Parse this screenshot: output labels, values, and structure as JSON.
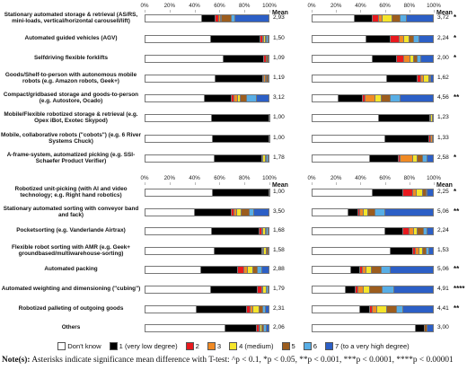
{
  "legend": [
    {
      "name": "Don't know",
      "color": "#ffffff"
    },
    {
      "name": "1 (very low degree)",
      "color": "#000000"
    },
    {
      "name": "2",
      "color": "#e8191e"
    },
    {
      "name": "3",
      "color": "#f08a24"
    },
    {
      "name": "4 (medium)",
      "color": "#f5e52b"
    },
    {
      "name": "5",
      "color": "#9c5d1e"
    },
    {
      "name": "6",
      "color": "#58aee6"
    },
    {
      "name": "7 (to a very high degree)",
      "color": "#2c5fc6"
    }
  ],
  "note_label": "Note(s):",
  "note_text": "Asterisks indicate significance mean difference with T-test: ^p < 0.1, *p < 0.05, **p < 0.001, ***p < 0.0001, ****p < 0.00001",
  "chart_data": [
    {
      "type": "bar",
      "orientation": "horizontal",
      "stacked": true,
      "categories": [
        "Stationary automated storage & retrieval (AS/RS, mini-loads, vertical/horizontal carousell/lift)",
        "Automated guided vehicles (AGV)",
        "Selfdriving flexible forklifts",
        "Goods/Shelf-to-person with autonomous mobile robots (e.g. Amazon robots, Geek+)",
        "Compact/gridbased storage and goods-to-person (e.g. Autostore, Ocado)",
        "Mobile/Flexible robotized storage & retrieval (e.g. Opex iBot, Exotec Skypod)",
        "Mobile, collaborative robots (\"cobots\") (e.g. 6 River Systems Chuck)",
        "A-frame-system, automatized picking (e.g. SSI-Schaefer Product Verifier)"
      ],
      "series": [
        {
          "values": [
            46,
            53,
            63,
            57,
            48,
            54,
            55,
            56
          ]
        },
        {
          "values": [
            11,
            40,
            33,
            38,
            22,
            46,
            45,
            38
          ]
        },
        {
          "values": [
            3,
            2,
            2,
            1,
            2,
            0,
            0,
            1
          ]
        },
        {
          "values": [
            1,
            1,
            0,
            1,
            3,
            0,
            0,
            0
          ]
        },
        {
          "values": [
            1,
            1,
            0,
            1,
            2,
            0,
            0,
            2
          ]
        },
        {
          "values": [
            8,
            1,
            1,
            1,
            5,
            0,
            0,
            1
          ]
        },
        {
          "values": [
            3,
            1,
            0,
            0,
            8,
            0,
            0,
            1
          ]
        },
        {
          "values": [
            27,
            1,
            1,
            1,
            10,
            0,
            0,
            1
          ]
        }
      ],
      "mean_label": "Mean",
      "means": [
        2.93,
        1.5,
        1.09,
        1.19,
        3.12,
        1.0,
        1.0,
        1.78
      ],
      "value_labels": [
        "2,93",
        "1,50",
        "1,09",
        "1,19",
        "3,12",
        "1,00",
        "1,00",
        "1,78"
      ],
      "xlim": [
        0,
        100
      ],
      "xticks": [
        {
          "value": 0,
          "label": "0%"
        },
        {
          "value": 20,
          "label": "20%"
        },
        {
          "value": 40,
          "label": "40%"
        },
        {
          "value": 60,
          "label": "60%"
        },
        {
          "value": 80,
          "label": "80%"
        },
        {
          "value": 100,
          "label": "100%"
        }
      ]
    },
    {
      "type": "bar",
      "orientation": "horizontal",
      "stacked": true,
      "series": [
        {
          "values": [
            35,
            45,
            50,
            62,
            22,
            55,
            60,
            48
          ]
        },
        {
          "values": [
            15,
            20,
            20,
            25,
            20,
            42,
            36,
            23
          ]
        },
        {
          "values": [
            5,
            7,
            6,
            3,
            2,
            1,
            2,
            2
          ]
        },
        {
          "values": [
            3,
            4,
            5,
            2,
            8,
            0,
            1,
            10
          ]
        },
        {
          "values": [
            8,
            4,
            3,
            4,
            5,
            1,
            0,
            4
          ]
        },
        {
          "values": [
            7,
            4,
            3,
            1,
            8,
            0,
            0,
            4
          ]
        },
        {
          "values": [
            5,
            4,
            3,
            1,
            8,
            0,
            0,
            4
          ]
        },
        {
          "values": [
            22,
            12,
            10,
            2,
            27,
            1,
            1,
            5
          ]
        }
      ],
      "mean_label": "Mean",
      "means": [
        3.72,
        2.24,
        2.0,
        1.62,
        4.56,
        1.23,
        1.33,
        2.58
      ],
      "value_labels": [
        "3,72",
        "2,24",
        "2,00",
        "1,62",
        "4,56",
        "1,23",
        "1,33",
        "2,58"
      ],
      "significance": [
        "*",
        "*",
        "*",
        null,
        "**",
        null,
        null,
        "*"
      ],
      "xlim": [
        0,
        100
      ],
      "xticks": [
        {
          "value": 0,
          "label": "0%"
        },
        {
          "value": 20,
          "label": "20%"
        },
        {
          "value": 40,
          "label": "40%"
        },
        {
          "value": 60,
          "label": "60%"
        },
        {
          "value": 80,
          "label": "80%"
        },
        {
          "value": 100,
          "label": "100%"
        }
      ]
    },
    {
      "type": "bar",
      "orientation": "horizontal",
      "stacked": true,
      "categories": [
        "Robotized unit-picking (with AI and video technology; e.g. Right hand robotics)",
        "Stationary automated sorting with conveyor band and fack)",
        "Pocketsorting (e.g. Vanderlande Airtrax)",
        "Flexible robot sorting with AMR (e.g. Geek+ groundbased/multiwarehouse-sorting)",
        "Automated packing",
        "Automated weighting and dimensioning (\"cubing\")",
        "Robotized palleting of outgoing goods",
        "Others"
      ],
      "series": [
        {
          "values": [
            55,
            40,
            54,
            56,
            45,
            53,
            42,
            65
          ]
        },
        {
          "values": [
            45,
            30,
            38,
            38,
            30,
            38,
            40,
            25
          ]
        },
        {
          "values": [
            0,
            2,
            2,
            1,
            5,
            3,
            3,
            2
          ]
        },
        {
          "values": [
            0,
            2,
            1,
            1,
            3,
            1,
            2,
            1
          ]
        },
        {
          "values": [
            0,
            4,
            2,
            2,
            4,
            3,
            5,
            1
          ]
        },
        {
          "values": [
            0,
            6,
            1,
            1,
            4,
            0,
            3,
            2
          ]
        },
        {
          "values": [
            0,
            4,
            1,
            0,
            3,
            1,
            2,
            2
          ]
        },
        {
          "values": [
            0,
            12,
            1,
            1,
            6,
            1,
            3,
            2
          ]
        }
      ],
      "mean_label": "Mean",
      "means": [
        1.0,
        3.5,
        1.68,
        1.58,
        2.88,
        1.79,
        2.31,
        2.06
      ],
      "value_labels": [
        "1,00",
        "3,50",
        "1,68",
        "1,58",
        "2,88",
        "1,79",
        "2,31",
        "2,06"
      ],
      "xlim": [
        0,
        100
      ],
      "xticks": [
        {
          "value": 0,
          "label": "0%"
        },
        {
          "value": 20,
          "label": "20%"
        },
        {
          "value": 40,
          "label": "40%"
        },
        {
          "value": 60,
          "label": "60%"
        },
        {
          "value": 80,
          "label": "80%"
        },
        {
          "value": 100,
          "label": "100%"
        }
      ]
    },
    {
      "type": "bar",
      "orientation": "horizontal",
      "stacked": true,
      "series": [
        {
          "values": [
            50,
            30,
            60,
            65,
            32,
            28,
            40,
            85
          ]
        },
        {
          "values": [
            25,
            8,
            15,
            18,
            8,
            8,
            8,
            8
          ]
        },
        {
          "values": [
            8,
            2,
            5,
            2,
            2,
            2,
            2,
            0
          ]
        },
        {
          "values": [
            3,
            3,
            4,
            3,
            3,
            5,
            4,
            0
          ]
        },
        {
          "values": [
            5,
            3,
            3,
            3,
            4,
            5,
            8,
            0
          ]
        },
        {
          "values": [
            3,
            6,
            5,
            3,
            8,
            10,
            8,
            2
          ]
        },
        {
          "values": [
            1,
            8,
            3,
            2,
            8,
            10,
            5,
            0
          ]
        },
        {
          "values": [
            5,
            40,
            5,
            4,
            35,
            32,
            25,
            5
          ]
        }
      ],
      "mean_label": "Mean",
      "means": [
        2.25,
        5.06,
        2.24,
        1.53,
        5.06,
        4.91,
        4.41,
        3.0
      ],
      "value_labels": [
        "2,25",
        "5,06",
        "2,24",
        "1,53",
        "5,06",
        "4,91",
        "4,41",
        "3,00"
      ],
      "significance": [
        "*",
        "**",
        null,
        null,
        "**",
        "****",
        "**",
        null
      ],
      "xlim": [
        0,
        100
      ],
      "xticks": [
        {
          "value": 0,
          "label": "0%"
        },
        {
          "value": 20,
          "label": "20%"
        },
        {
          "value": 40,
          "label": "40%"
        },
        {
          "value": 60,
          "label": "60%"
        },
        {
          "value": 80,
          "label": "80%"
        },
        {
          "value": 100,
          "label": "100%"
        }
      ]
    }
  ]
}
